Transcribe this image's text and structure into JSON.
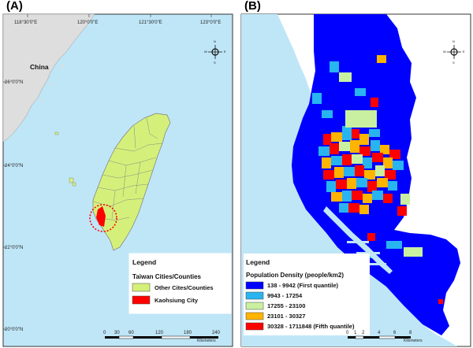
{
  "panel_a": {
    "label": "(A)",
    "lon_ticks": [
      "118°30'0\"E",
      "120°0'0\"E",
      "121°30'0\"E",
      "123°0'0\"E"
    ],
    "lat_ticks": [
      "26°0'0\"N",
      "24°0'0\"N",
      "22°0'0\"N",
      "20°0'0\"N"
    ],
    "china_label": "China",
    "legend": {
      "title": "Legend",
      "subtitle": "Taiwan Cities/Counties",
      "items": [
        {
          "label": "Other Cites/Counties",
          "color": "#d4f07a"
        },
        {
          "label": "Kaohsiung City",
          "color": "#ff0000"
        }
      ]
    },
    "scale": {
      "ticks": [
        "0",
        "30",
        "60",
        "120",
        "180",
        "240"
      ],
      "unit": "Kilometers"
    },
    "colors": {
      "sea": "#bfe6f7",
      "land_mainland": "#dedede",
      "taiwan": "#d4f07a",
      "highlight": "#ff0000"
    }
  },
  "panel_b": {
    "label": "(B)",
    "legend": {
      "title": "Legend",
      "subtitle": "Population Density (people/km2)",
      "items": [
        {
          "label": "138 - 9942 (First quantile)",
          "color": "#0000ff"
        },
        {
          "label": "9943 - 17254",
          "color": "#28b4f0"
        },
        {
          "label": "17255 - 23100",
          "color": "#c8f0a0"
        },
        {
          "label": "23101 - 30327",
          "color": "#ffb400"
        },
        {
          "label": "30328 - 1711848 (Fifth quantile)",
          "color": "#ff0000"
        }
      ]
    },
    "scale": {
      "ticks": [
        "0",
        "1",
        "2",
        "4",
        "6",
        "8"
      ],
      "unit": "Kilometers"
    },
    "colors": {
      "sea": "#bfe6f7",
      "land": "#ffffff"
    }
  },
  "compass": {
    "n": "N",
    "s": "S",
    "e": "E",
    "w": "W"
  }
}
